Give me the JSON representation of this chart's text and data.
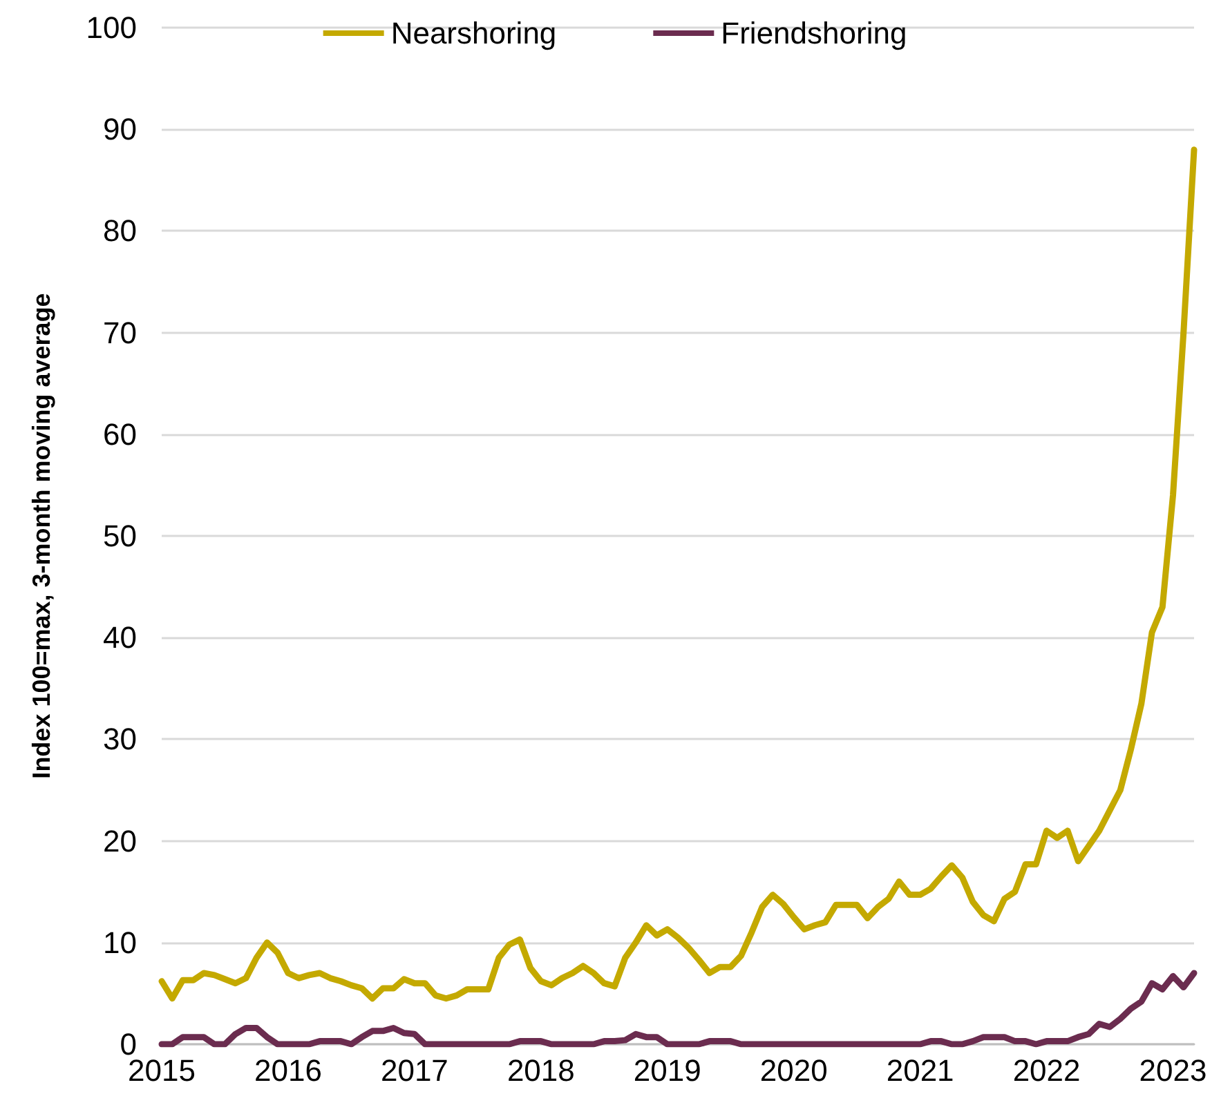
{
  "chart_data": {
    "type": "line",
    "ylabel": "Index 100=max, 3-month moving average",
    "x": [
      "2015-01",
      "2015-02",
      "2015-03",
      "2015-04",
      "2015-05",
      "2015-06",
      "2015-07",
      "2015-08",
      "2015-09",
      "2015-10",
      "2015-11",
      "2015-12",
      "2016-01",
      "2016-02",
      "2016-03",
      "2016-04",
      "2016-05",
      "2016-06",
      "2016-07",
      "2016-08",
      "2016-09",
      "2016-10",
      "2016-11",
      "2016-12",
      "2017-01",
      "2017-02",
      "2017-03",
      "2017-04",
      "2017-05",
      "2017-06",
      "2017-07",
      "2017-08",
      "2017-09",
      "2017-10",
      "2017-11",
      "2017-12",
      "2018-01",
      "2018-02",
      "2018-03",
      "2018-04",
      "2018-05",
      "2018-06",
      "2018-07",
      "2018-08",
      "2018-09",
      "2018-10",
      "2018-11",
      "2018-12",
      "2019-01",
      "2019-02",
      "2019-03",
      "2019-04",
      "2019-05",
      "2019-06",
      "2019-07",
      "2019-08",
      "2019-09",
      "2019-10",
      "2019-11",
      "2019-12",
      "2020-01",
      "2020-02",
      "2020-03",
      "2020-04",
      "2020-05",
      "2020-06",
      "2020-07",
      "2020-08",
      "2020-09",
      "2020-10",
      "2020-11",
      "2020-12",
      "2021-01",
      "2021-02",
      "2021-03",
      "2021-04",
      "2021-05",
      "2021-06",
      "2021-07",
      "2021-08",
      "2021-09",
      "2021-10",
      "2021-11",
      "2021-12",
      "2022-01",
      "2022-02",
      "2022-03",
      "2022-04",
      "2022-05",
      "2022-06",
      "2022-07",
      "2022-08",
      "2022-09",
      "2022-10",
      "2022-11",
      "2022-12",
      "2023-01",
      "2023-02",
      "2023-03"
    ],
    "series": [
      {
        "name": "Nearshoring",
        "color": "#c4a900",
        "values": [
          6.2,
          4.5,
          6.3,
          6.3,
          7,
          6.8,
          6.4,
          6,
          6.5,
          8.5,
          10,
          9,
          7,
          6.5,
          6.8,
          7,
          6.5,
          6.2,
          5.8,
          5.5,
          4.5,
          5.5,
          5.5,
          6.4,
          6,
          6,
          4.8,
          4.5,
          4.8,
          5.4,
          5.4,
          5.4,
          8.5,
          9.8,
          10.3,
          7.5,
          6.2,
          5.8,
          6.5,
          7,
          7.7,
          7,
          6,
          5.7,
          8.5,
          10,
          11.7,
          10.7,
          11.3,
          10.5,
          9.5,
          8.3,
          7,
          7.6,
          7.6,
          8.7,
          11,
          13.5,
          14.7,
          13.8,
          12.5,
          11.3,
          11.7,
          12,
          13.7,
          13.7,
          13.7,
          12.4,
          13.5,
          14.3,
          16,
          14.7,
          14.7,
          15.3,
          16.5,
          17.6,
          16.4,
          14,
          12.7,
          12.1,
          14.3,
          15,
          17.7,
          17.7,
          21,
          20.3,
          21,
          18,
          19.5,
          21,
          23,
          25,
          29,
          33.5,
          40.5,
          43,
          54,
          70,
          88
        ]
      },
      {
        "name": "Friendshoring",
        "color": "#6b2c4f",
        "values": [
          0,
          0,
          0.7,
          0.7,
          0.7,
          0,
          0,
          1,
          1.6,
          1.6,
          0.7,
          0,
          0,
          0,
          0,
          0.3,
          0.3,
          0.3,
          0,
          0.7,
          1.3,
          1.3,
          1.6,
          1.1,
          1,
          0,
          0,
          0,
          0,
          0,
          0,
          0,
          0,
          0,
          0.3,
          0.3,
          0.3,
          0,
          0,
          0,
          0,
          0,
          0.3,
          0.3,
          0.4,
          1,
          0.7,
          0.7,
          0,
          0,
          0,
          0,
          0.3,
          0.3,
          0.3,
          0,
          0,
          0,
          0,
          0,
          0,
          0,
          0,
          0,
          0,
          0,
          0,
          0,
          0,
          0,
          0,
          0,
          0,
          0.3,
          0.3,
          0,
          0,
          0.3,
          0.7,
          0.7,
          0.7,
          0.3,
          0.3,
          0,
          0.3,
          0.3,
          0.3,
          0.7,
          1,
          2,
          1.7,
          2.5,
          3.5,
          4.2,
          6,
          5.4,
          6.7,
          5.6,
          7
        ]
      }
    ],
    "xlim": [
      "2015",
      "2023-03"
    ],
    "xticks": [
      "2015",
      "2016",
      "2017",
      "2018",
      "2019",
      "2020",
      "2021",
      "2022",
      "2023"
    ],
    "ylim": [
      0,
      100
    ],
    "yticks": [
      0,
      10,
      20,
      30,
      40,
      50,
      60,
      70,
      80,
      90,
      100
    ],
    "grid": "y",
    "legend": "top",
    "marker": "none",
    "line_style": "solid"
  }
}
